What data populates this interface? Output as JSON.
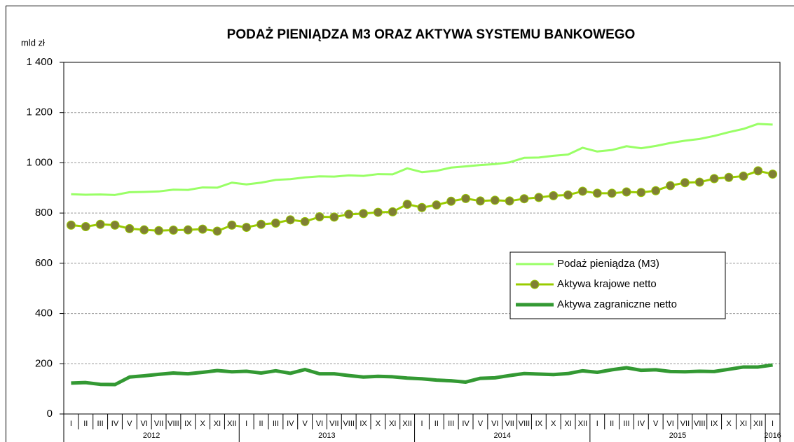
{
  "chart_data": {
    "type": "line",
    "title": "PODAŻ PIENIĄDZA M3 ORAZ AKTYWA SYSTEMU BANKOWEGO",
    "y_label": "mld zł",
    "categories": [
      "I",
      "II",
      "III",
      "IV",
      "V",
      "VI",
      "VII",
      "VIII",
      "IX",
      "X",
      "XI",
      "XII",
      "I",
      "II",
      "III",
      "IV",
      "V",
      "VI",
      "VII",
      "VIII",
      "IX",
      "X",
      "XI",
      "XII",
      "I",
      "II",
      "III",
      "IV",
      "V",
      "VI",
      "VII",
      "VIII",
      "IX",
      "X",
      "XI",
      "XII",
      "I",
      "II",
      "III",
      "IV",
      "V",
      "VI",
      "VII",
      "VIII",
      "IX",
      "X",
      "XI",
      "XII",
      "I"
    ],
    "years": [
      "2012",
      "2013",
      "2014",
      "2015",
      "2016"
    ],
    "series": [
      {
        "name": "Podaż pieniądza (M3)",
        "color": "#99ff66",
        "marker": false,
        "values": [
          875,
          873,
          874,
          872,
          883,
          884,
          886,
          893,
          892,
          902,
          901,
          921,
          914,
          921,
          932,
          935,
          942,
          946,
          945,
          950,
          948,
          955,
          954,
          978,
          963,
          968,
          981,
          986,
          991,
          995,
          1002,
          1020,
          1021,
          1028,
          1033,
          1060,
          1045,
          1051,
          1066,
          1058,
          1067,
          1079,
          1088,
          1095,
          1107,
          1122,
          1135,
          1155,
          1152
        ]
      },
      {
        "name": "Aktywa krajowe netto",
        "color": "#99cc00",
        "marker": true,
        "marker_color": "#808033",
        "values": [
          752,
          746,
          755,
          752,
          738,
          733,
          730,
          732,
          733,
          736,
          728,
          752,
          743,
          755,
          760,
          773,
          766,
          785,
          784,
          795,
          798,
          803,
          805,
          835,
          822,
          832,
          847,
          858,
          848,
          851,
          848,
          857,
          862,
          869,
          872,
          887,
          879,
          879,
          884,
          882,
          889,
          909,
          921,
          923,
          937,
          942,
          947,
          968,
          955
        ]
      },
      {
        "name": "Aktywa zagraniczne netto",
        "color": "#339933",
        "marker": false,
        "values": [
          123,
          125,
          118,
          117,
          147,
          152,
          158,
          163,
          160,
          166,
          173,
          168,
          170,
          163,
          172,
          162,
          177,
          160,
          160,
          153,
          147,
          150,
          148,
          143,
          140,
          135,
          132,
          127,
          142,
          144,
          153,
          161,
          159,
          157,
          161,
          172,
          166,
          176,
          184,
          174,
          176,
          169,
          168,
          170,
          169,
          178,
          187,
          187,
          195
        ]
      }
    ],
    "ylim": [
      0,
      1400
    ],
    "yticks": [
      0,
      200,
      400,
      600,
      800,
      {
        "value": 1000,
        "label": "1 000"
      },
      {
        "value": 1200,
        "label": "1 200"
      },
      {
        "value": 1400,
        "label": "1 400"
      }
    ],
    "grid": true
  }
}
